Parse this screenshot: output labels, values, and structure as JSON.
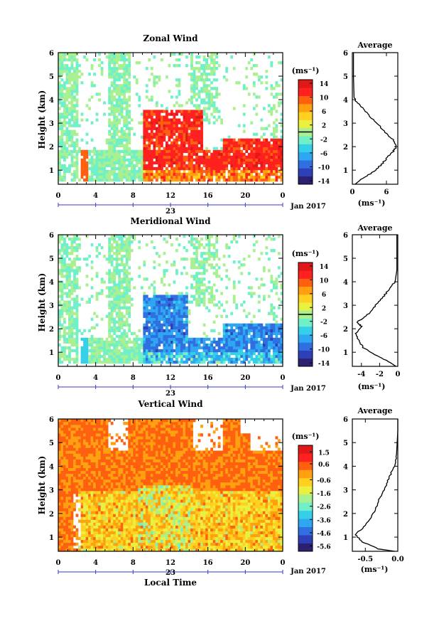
{
  "chart_data": [
    {
      "type": "heatmap",
      "title": "Zonal Wind",
      "ylabel": "Height (km)",
      "xlabel": "",
      "x_ticks": [
        "0",
        "4",
        "8",
        "12",
        "16",
        "20",
        "0"
      ],
      "y_ticks": [
        "1",
        "2",
        "3",
        "4",
        "5",
        "6"
      ],
      "xlim_hours": [
        0,
        24
      ],
      "ylim_km": [
        0.4,
        6
      ],
      "date_label": "23",
      "month_label": "Jan 2017",
      "colorbar": {
        "unit": "(ms⁻¹)",
        "ticks": [
          "14",
          "10",
          "6",
          "2",
          "-2",
          "-6",
          "-10",
          "-14"
        ],
        "range": [
          -15,
          15
        ]
      },
      "field_profile_kind": "zonal",
      "average_profile": {
        "title": "Average",
        "xlabel": "(ms⁻¹)",
        "x_ticks": [
          "0",
          "6"
        ],
        "xlim": [
          0,
          8
        ],
        "points": [
          [
            0.5,
            0.4
          ],
          [
            1.5,
            0.6
          ],
          [
            3.5,
            0.9
          ],
          [
            5.0,
            1.2
          ],
          [
            6.0,
            1.5
          ],
          [
            7.2,
            1.8
          ],
          [
            7.8,
            2.0
          ],
          [
            7.2,
            2.3
          ],
          [
            5.8,
            2.6
          ],
          [
            4.3,
            3.0
          ],
          [
            3.0,
            3.3
          ],
          [
            2.0,
            3.6
          ],
          [
            0.8,
            3.9
          ],
          [
            0.3,
            4.1
          ],
          [
            0.2,
            5.0
          ],
          [
            0.2,
            6.0
          ]
        ]
      }
    },
    {
      "type": "heatmap",
      "title": "Meridional Wind",
      "ylabel": "Height (km)",
      "xlabel": "",
      "x_ticks": [
        "0",
        "4",
        "8",
        "12",
        "16",
        "20",
        "0"
      ],
      "y_ticks": [
        "1",
        "2",
        "3",
        "4",
        "5",
        "6"
      ],
      "xlim_hours": [
        0,
        24
      ],
      "ylim_km": [
        0.4,
        6
      ],
      "date_label": "23",
      "month_label": "Jan 2017",
      "colorbar": {
        "unit": "(ms⁻¹)",
        "ticks": [
          "14",
          "10",
          "6",
          "2",
          "-2",
          "-6",
          "-10",
          "-14"
        ],
        "range": [
          -15,
          15
        ]
      },
      "field_profile_kind": "meridional",
      "average_profile": {
        "title": "Average",
        "xlabel": "(ms⁻¹)",
        "x_ticks": [
          "-4",
          "-2",
          "0"
        ],
        "xlim": [
          -5,
          0
        ],
        "points": [
          [
            -0.2,
            0.4
          ],
          [
            -1.0,
            0.6
          ],
          [
            -2.5,
            0.9
          ],
          [
            -3.8,
            1.2
          ],
          [
            -4.3,
            1.5
          ],
          [
            -4.6,
            1.8
          ],
          [
            -4.0,
            2.1
          ],
          [
            -4.5,
            2.3
          ],
          [
            -3.6,
            2.5
          ],
          [
            -2.8,
            2.8
          ],
          [
            -2.2,
            3.1
          ],
          [
            -1.5,
            3.4
          ],
          [
            -0.9,
            3.7
          ],
          [
            -0.3,
            4.0
          ],
          [
            -0.1,
            4.5
          ],
          [
            -0.1,
            6.0
          ]
        ]
      }
    },
    {
      "type": "heatmap",
      "title": "Vertical Wind",
      "ylabel": "Height (km)",
      "xlabel": "Local Time",
      "x_ticks": [
        "0",
        "4",
        "8",
        "12",
        "16",
        "20",
        "0"
      ],
      "y_ticks": [
        "1",
        "2",
        "3",
        "4",
        "5",
        "6"
      ],
      "xlim_hours": [
        0,
        24
      ],
      "ylim_km": [
        0.4,
        6
      ],
      "date_label": "23",
      "month_label": "Jan 2017",
      "colorbar": {
        "unit": "(ms⁻¹)",
        "ticks": [
          "1.5",
          "0.6",
          "-0.6",
          "-1.6",
          "-2.6",
          "-3.6",
          "-4.6",
          "-5.6"
        ],
        "range": [
          -6.0,
          2.0
        ]
      },
      "field_profile_kind": "vertical",
      "average_profile": {
        "title": "Average",
        "xlabel": "(ms⁻¹)",
        "x_ticks": [
          "-0.5",
          "0.0"
        ],
        "xlim": [
          -0.7,
          0.0
        ],
        "points": [
          [
            -0.05,
            0.4
          ],
          [
            -0.3,
            0.5
          ],
          [
            -0.55,
            0.8
          ],
          [
            -0.65,
            1.1
          ],
          [
            -0.5,
            1.5
          ],
          [
            -0.38,
            2.0
          ],
          [
            -0.3,
            2.5
          ],
          [
            -0.25,
            2.8
          ],
          [
            -0.18,
            3.2
          ],
          [
            -0.12,
            3.6
          ],
          [
            -0.05,
            4.0
          ],
          [
            -0.02,
            4.5
          ],
          [
            0.0,
            5.5
          ],
          [
            0.0,
            6.0
          ]
        ]
      }
    }
  ],
  "colors": {
    "jet": [
      "#2b2170",
      "#2e3fb8",
      "#2f6fe0",
      "#2fa6f2",
      "#35d0e8",
      "#6ff0c8",
      "#a8f090",
      "#e8f040",
      "#ffd020",
      "#ffa010",
      "#ff6010",
      "#ff2020",
      "#e01818"
    ]
  }
}
